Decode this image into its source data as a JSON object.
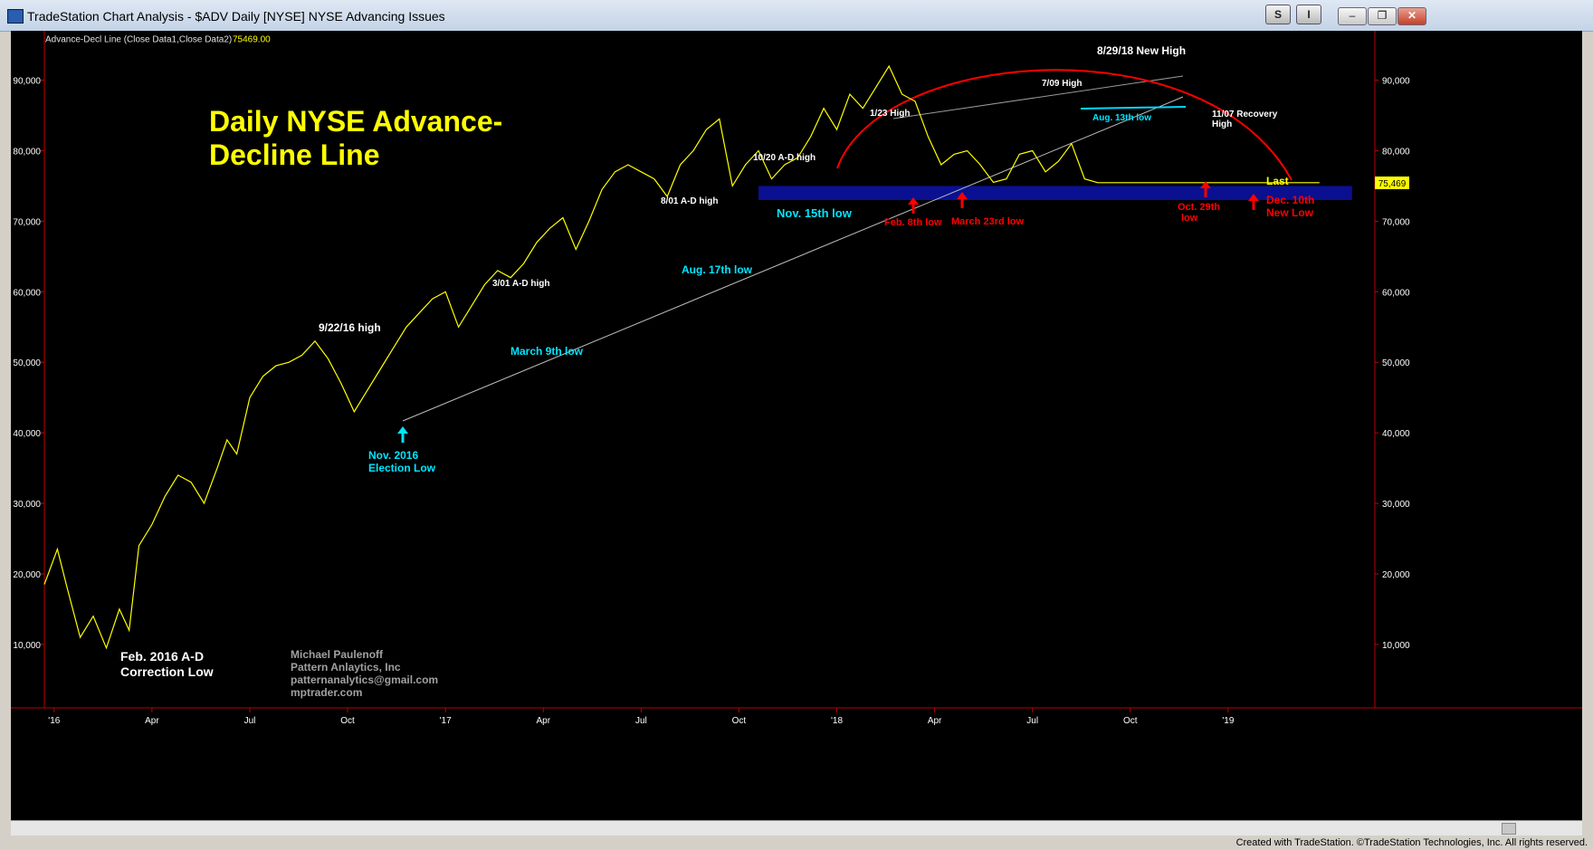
{
  "window": {
    "title": "TradeStation Chart Analysis - $ADV Daily [NYSE] NYSE Advancing Issues",
    "buttons": [
      "S",
      "I"
    ],
    "controls": [
      "minimize-icon",
      "restore-icon",
      "close-icon"
    ]
  },
  "chart_data": {
    "type": "line",
    "indicator_label": "Advance-Decl Line (Close Data1,Close Data2)",
    "indicator_value": "75469.00",
    "last_value_tag": "75,469",
    "title": "Daily NYSE Advance-Decline Line",
    "y_ticks": [
      "90,000",
      "80,000",
      "70,000",
      "60,000",
      "50,000",
      "40,000",
      "30,000",
      "20,000",
      "10,000"
    ],
    "y_tick_values": [
      90000,
      80000,
      70000,
      60000,
      50000,
      40000,
      30000,
      20000,
      10000
    ],
    "ylim": [
      1000,
      97000
    ],
    "x_ticks": [
      "'16",
      "Apr",
      "Jul",
      "Oct",
      "'17",
      "Apr",
      "Jul",
      "Oct",
      "'18",
      "Apr",
      "Jul",
      "Oct",
      "'19"
    ],
    "x_tick_values": [
      0,
      3,
      6,
      9,
      12,
      15,
      18,
      21,
      24,
      27,
      30,
      33,
      36
    ],
    "xlim": [
      -0.3,
      40.5
    ],
    "series": [
      {
        "color": "#ffff00",
        "x": [
          -0.3,
          0.1,
          0.4,
          0.8,
          1.2,
          1.6,
          2.0,
          2.3,
          2.6,
          3.0,
          3.4,
          3.8,
          4.2,
          4.6,
          5.0,
          5.3,
          5.6,
          6.0,
          6.4,
          6.8,
          7.2,
          7.6,
          8.0,
          8.4,
          8.8,
          9.2,
          9.6,
          10.0,
          10.4,
          10.8,
          11.2,
          11.6,
          12.0,
          12.4,
          12.8,
          13.2,
          13.6,
          14.0,
          14.4,
          14.8,
          15.2,
          15.6,
          16.0,
          16.4,
          16.8,
          17.2,
          17.6,
          18.0,
          18.4,
          18.8,
          19.2,
          19.6,
          20.0,
          20.4,
          20.8,
          21.2,
          21.6,
          22.0,
          22.4,
          22.8,
          23.2,
          23.6,
          24.0,
          24.4,
          24.8,
          25.2,
          25.6,
          26.0,
          26.4,
          26.8,
          27.2,
          27.6,
          28.0,
          28.4,
          28.8,
          29.2,
          29.6,
          30.0,
          30.4,
          30.8,
          31.2,
          31.6,
          32.0,
          32.4,
          32.8,
          33.2,
          33.6,
          34.0,
          34.4,
          34.8,
          35.2,
          35.6,
          36.0,
          36.4,
          36.8,
          37.2,
          37.6,
          38.0,
          38.4,
          38.8,
          39.2
        ],
        "values": [
          18500,
          23500,
          18000,
          11000,
          14000,
          9500,
          15000,
          12000,
          24000,
          27000,
          31000,
          34000,
          33000,
          30000,
          35000,
          39000,
          37000,
          45000,
          48000,
          49500,
          50000,
          51000,
          53000,
          50500,
          47000,
          43000,
          46000,
          49000,
          52000,
          55000,
          57000,
          59000,
          60000,
          55000,
          58000,
          61000,
          63000,
          62000,
          64000,
          67000,
          69000,
          70500,
          66000,
          70000,
          74500,
          77000,
          78000,
          77000,
          76000,
          73500,
          78000,
          80000,
          83000,
          84500,
          75000,
          78000,
          80000,
          76000,
          78000,
          79000,
          82000,
          86000,
          83000,
          88000,
          86000,
          89000,
          92000,
          88000,
          87000,
          82000,
          78000,
          79500,
          80000,
          78000,
          75500,
          76000,
          79500,
          80000,
          77000,
          78500,
          81000,
          76000,
          75469,
          75469,
          75469,
          75469,
          75469,
          75469,
          75469,
          75469,
          75469,
          75469,
          75469,
          75469,
          75469,
          75469,
          75469,
          75469,
          75469,
          75469,
          75469
        ]
      }
    ],
    "support_zone": {
      "x0": 21.6,
      "x1": 39.8,
      "y0": 73000,
      "y1": 75000,
      "color": "#0a1090"
    },
    "annotations": {
      "pt_22_16_high": "9/22/16 high",
      "pt_3_01_high": "3/01 A-D high",
      "pt_8_01_high": "8/01 A-D high",
      "pt_10_20_high": "10/20 A-D high",
      "pt_1_23_high": "1/23 High",
      "pt_7_09_high": "7/09  High",
      "pt_8_29_new_high": "8/29/18 New High",
      "pt_11_07_a": "11/07 Recovery",
      "pt_11_07_b": "High",
      "pt_last": "Last",
      "lo_nov2016_a": "Nov. 2016",
      "lo_nov2016_b": "Election Low",
      "lo_march9": "March 9th low",
      "lo_aug17": "Aug. 17th low",
      "lo_nov15": "Nov. 15th low",
      "lo_aug13": "Aug. 13th low",
      "lo_feb8": "Feb. 8th low",
      "lo_march23": "March 23rd low",
      "lo_oct29_a": "Oct. 29th",
      "lo_oct29_b": "low",
      "lo_dec10_a": "Dec. 10th",
      "lo_dec10_b": "New Low",
      "feb2016_a": "Feb. 2016 A-D",
      "feb2016_b": "Correction Low"
    },
    "credits": [
      "Michael Paulenoff",
      "Pattern Anlaytics, Inc",
      "patternanalytics@gmail.com",
      "mptrader.com"
    ],
    "colors": {
      "background": "#000000",
      "line": "#ffff00",
      "axis": "#c00000",
      "title": "#ffff00",
      "high_labels": "#ffffff",
      "low_labels_cyan": "#00e5ff",
      "low_labels_red": "#ff0000",
      "credit": "#a0a0a0"
    }
  },
  "footer": "Created with TradeStation. ©TradeStation Technologies, Inc. All rights reserved."
}
